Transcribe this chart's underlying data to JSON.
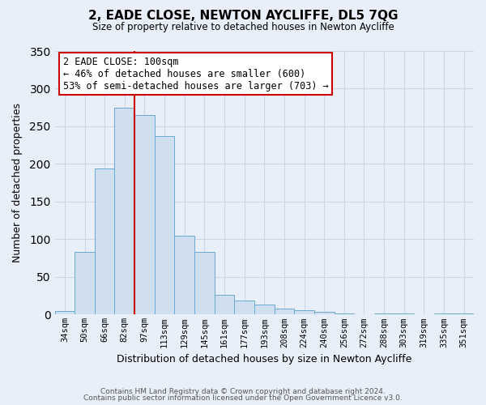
{
  "title": "2, EADE CLOSE, NEWTON AYCLIFFE, DL5 7QG",
  "subtitle": "Size of property relative to detached houses in Newton Aycliffe",
  "xlabel": "Distribution of detached houses by size in Newton Aycliffe",
  "ylabel": "Number of detached properties",
  "footer_line1": "Contains HM Land Registry data © Crown copyright and database right 2024.",
  "footer_line2": "Contains public sector information licensed under the Open Government Licence v3.0.",
  "bar_labels": [
    "34sqm",
    "50sqm",
    "66sqm",
    "82sqm",
    "97sqm",
    "113sqm",
    "129sqm",
    "145sqm",
    "161sqm",
    "177sqm",
    "193sqm",
    "208sqm",
    "224sqm",
    "240sqm",
    "256sqm",
    "272sqm",
    "288sqm",
    "303sqm",
    "319sqm",
    "335sqm",
    "351sqm"
  ],
  "bar_values": [
    5,
    83,
    194,
    275,
    265,
    237,
    105,
    83,
    26,
    19,
    13,
    8,
    6,
    4,
    2,
    0,
    2,
    2,
    0,
    2,
    2
  ],
  "bar_color": "#cfdff0",
  "bar_edge_color": "#6aaad4",
  "vline_color": "#cc0000",
  "ylim": [
    0,
    350
  ],
  "annotation_title": "2 EADE CLOSE: 100sqm",
  "annotation_line1": "← 46% of detached houses are smaller (600)",
  "annotation_line2": "53% of semi-detached houses are larger (703) →",
  "annotation_box_color": "#ffffff",
  "annotation_box_edge": "#cc0000",
  "grid_color": "#c8d8e8",
  "background_color": "#e8eff8",
  "plot_bg_color": "#e8eff8"
}
